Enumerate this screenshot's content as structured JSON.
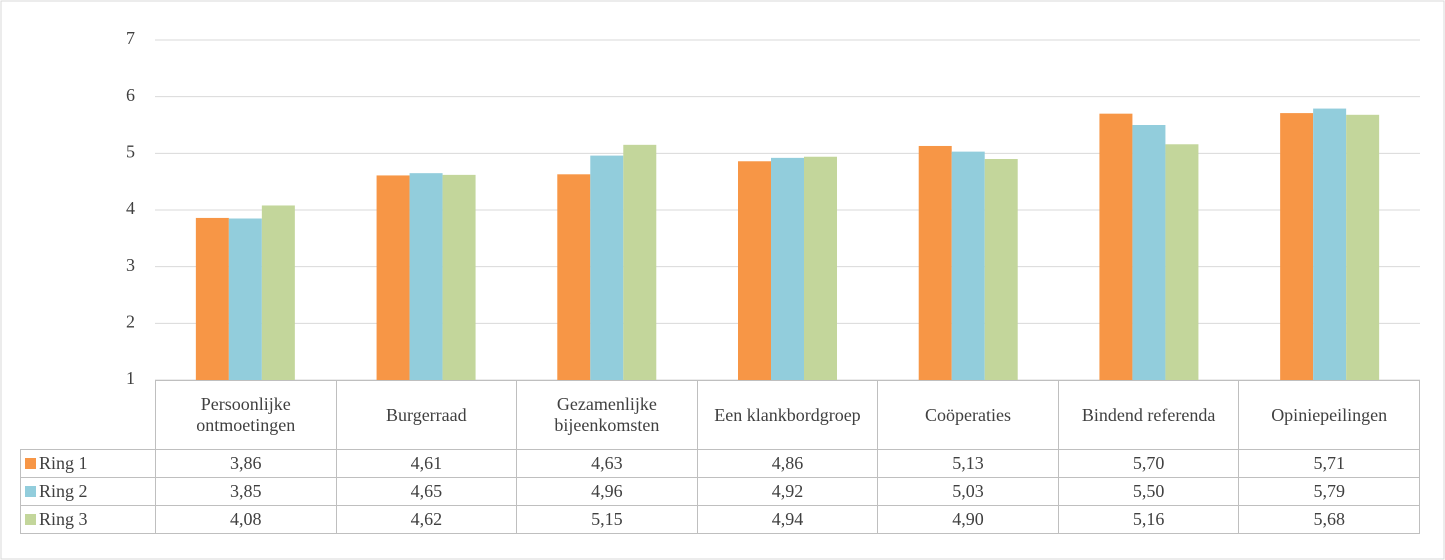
{
  "chart_data": {
    "type": "bar",
    "categories": [
      "Persoonlijke ontmoetingen",
      "Burgerraad",
      "Gezamenlijke bijeenkomsten",
      "Een klankbordgroep",
      "Coöperaties",
      "Bindend referenda",
      "Opiniepeilingen"
    ],
    "series": [
      {
        "name": "Ring 1",
        "color": "#f79646",
        "values": [
          3.86,
          4.61,
          4.63,
          4.86,
          5.13,
          5.7,
          5.71
        ],
        "value_labels": [
          "3,86",
          "4,61",
          "4,63",
          "4,86",
          "5,13",
          "5,70",
          "5,71"
        ]
      },
      {
        "name": "Ring 2",
        "color": "#92cddc",
        "values": [
          3.85,
          4.65,
          4.96,
          4.92,
          5.03,
          5.5,
          5.79
        ],
        "value_labels": [
          "3,85",
          "4,65",
          "4,96",
          "4,92",
          "5,03",
          "5,50",
          "5,79"
        ]
      },
      {
        "name": "Ring 3",
        "color": "#c3d69b",
        "values": [
          4.08,
          4.62,
          5.15,
          4.94,
          4.9,
          5.16,
          5.68
        ],
        "value_labels": [
          "4,08",
          "4,62",
          "5,15",
          "4,94",
          "4,90",
          "5,16",
          "5,68"
        ]
      }
    ],
    "ylim": [
      1,
      7
    ],
    "yticks": [
      1,
      2,
      3,
      4,
      5,
      6,
      7
    ],
    "grid": true
  }
}
